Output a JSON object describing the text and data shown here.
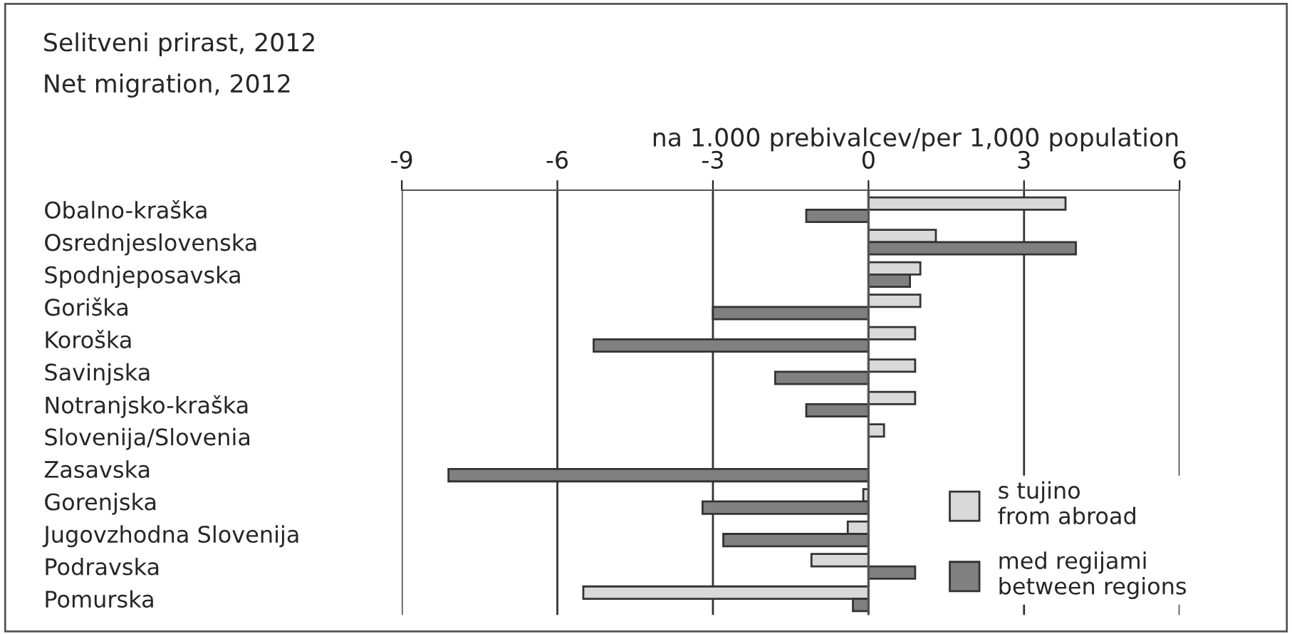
{
  "chart_data": {
    "type": "bar",
    "orientation": "horizontal",
    "title": "Selitveni prirast, 2012",
    "subtitle": "Net migration, 2012",
    "xlabel": "na 1.000 prebivalcev/per 1,000 population",
    "categories": [
      "Obalno-kraška",
      "Osrednjeslovenska",
      "Spodnjeposavska",
      "Goriška",
      "Koroška",
      "Savinjska",
      "Notranjsko-kraška",
      "Slovenija/Slovenia",
      "Zasavska",
      "Gorenjska",
      "Jugovzhodna Slovenija",
      "Podravska",
      "Pomurska"
    ],
    "series": [
      {
        "name": "s tujino\nfrom abroad",
        "color": "#d9d9d9",
        "values": [
          3.8,
          1.3,
          1.0,
          1.0,
          0.9,
          0.9,
          0.9,
          0.3,
          null,
          -0.1,
          -0.4,
          -1.1,
          -5.5
        ]
      },
      {
        "name": "med regijami\nbetween regions",
        "color": "#808080",
        "values": [
          -1.2,
          4.0,
          0.8,
          -3.0,
          -5.3,
          -1.8,
          -1.2,
          null,
          -8.1,
          -3.2,
          -2.8,
          0.9,
          -0.3
        ]
      }
    ],
    "xlim": [
      -9,
      6
    ],
    "xticks": [
      -9,
      -6,
      -3,
      0,
      3,
      6
    ],
    "grid": "x",
    "legend": "bottom right",
    "ref_lines": [
      {
        "axis": "x",
        "value": 0
      }
    ]
  }
}
